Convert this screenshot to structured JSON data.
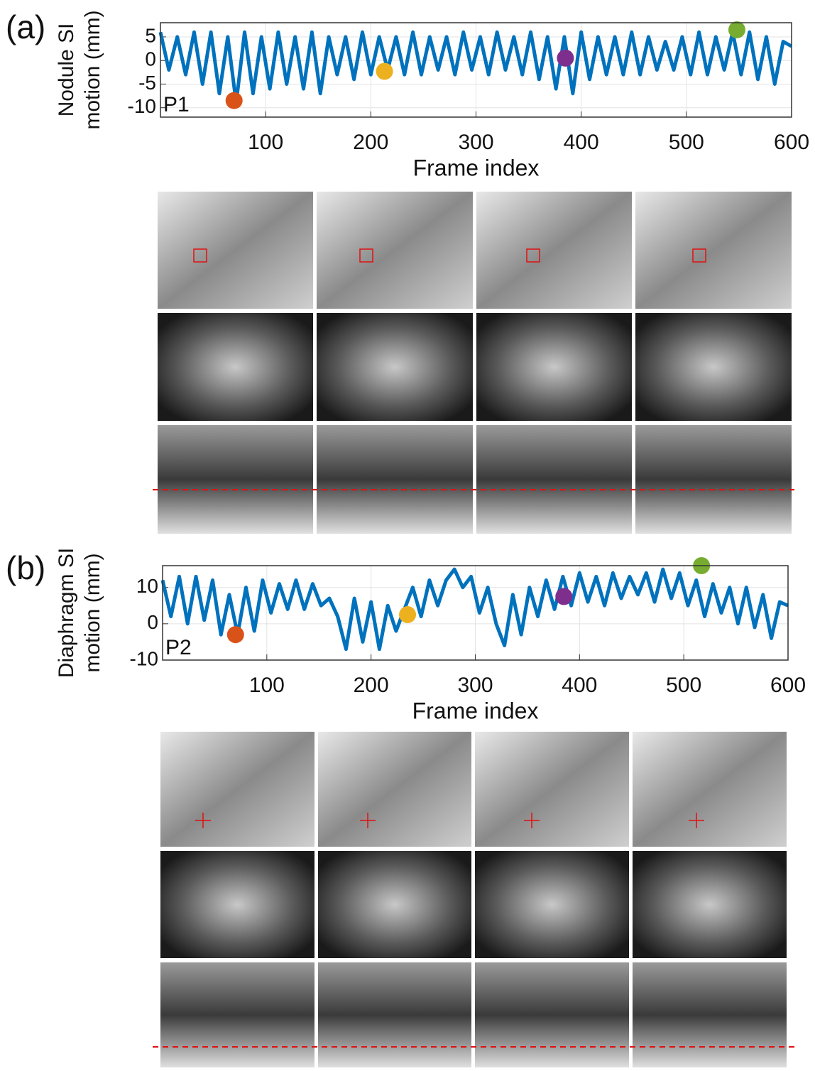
{
  "chart_data": [
    {
      "type": "line",
      "panel_label": "(a)",
      "subject": "P1",
      "ylabel": [
        "Nodule SI",
        "motion (mm)"
      ],
      "xlabel": "Frame index",
      "xlim": [
        0,
        600
      ],
      "xticks": [
        100,
        200,
        300,
        400,
        500,
        600
      ],
      "ylim": [
        -12,
        8
      ],
      "yticks": [
        -10,
        -5,
        0,
        5
      ],
      "grid": true,
      "x": [
        0,
        8,
        16,
        24,
        32,
        40,
        48,
        56,
        64,
        72,
        80,
        88,
        96,
        104,
        112,
        120,
        128,
        136,
        144,
        152,
        160,
        168,
        176,
        184,
        192,
        200,
        208,
        216,
        224,
        232,
        240,
        248,
        256,
        264,
        272,
        280,
        288,
        296,
        304,
        312,
        320,
        328,
        336,
        344,
        352,
        360,
        368,
        376,
        384,
        392,
        400,
        408,
        416,
        424,
        432,
        440,
        448,
        456,
        464,
        472,
        480,
        488,
        496,
        504,
        512,
        520,
        528,
        536,
        544,
        552,
        560,
        568,
        576,
        584,
        592,
        600
      ],
      "series": [
        {
          "color": "#0072bd",
          "values": [
            6,
            -2,
            5,
            -3,
            6,
            -5,
            6,
            -7,
            5,
            -9,
            6,
            -7,
            5,
            -6,
            6,
            -5,
            5,
            -6,
            6,
            -7,
            5,
            -3,
            5,
            -4,
            6,
            -3,
            5,
            -2,
            5,
            -3,
            6,
            -3,
            5,
            -2,
            5,
            -3,
            6,
            -2,
            5,
            -3,
            6,
            -2,
            5,
            -3,
            6,
            -4,
            5,
            -6,
            5,
            -7,
            6,
            -4,
            5,
            -3,
            5,
            -3,
            6,
            -3,
            5,
            -2,
            4,
            -2,
            5,
            -3,
            6,
            -3,
            5,
            -2,
            6,
            -3,
            6,
            -4,
            5,
            -5,
            4,
            3
          ]
        }
      ],
      "points": [
        {
          "x": 70,
          "y": -8.5,
          "color": "#d95319"
        },
        {
          "x": 213,
          "y": -2.3,
          "color": "#edb120"
        },
        {
          "x": 385,
          "y": 0.5,
          "color": "#7e2f8e"
        },
        {
          "x": 548,
          "y": 6.5,
          "color": "#77ac30"
        }
      ]
    },
    {
      "type": "line",
      "panel_label": "(b)",
      "subject": "P2",
      "ylabel": [
        "Diaphragm SI",
        "motion (mm)"
      ],
      "xlabel": "Frame index",
      "xlim": [
        0,
        600
      ],
      "xticks": [
        100,
        200,
        300,
        400,
        500,
        600
      ],
      "ylim": [
        -10,
        16
      ],
      "yticks": [
        -10,
        0,
        10
      ],
      "grid": true,
      "x": [
        0,
        8,
        16,
        24,
        32,
        40,
        48,
        56,
        64,
        72,
        80,
        88,
        96,
        104,
        112,
        120,
        128,
        136,
        144,
        152,
        160,
        168,
        176,
        184,
        192,
        200,
        208,
        216,
        224,
        232,
        240,
        248,
        256,
        264,
        272,
        280,
        288,
        296,
        304,
        312,
        320,
        328,
        336,
        344,
        352,
        360,
        368,
        376,
        384,
        392,
        400,
        408,
        416,
        424,
        432,
        440,
        448,
        456,
        464,
        472,
        480,
        488,
        496,
        504,
        512,
        520,
        528,
        536,
        544,
        552,
        560,
        568,
        576,
        584,
        592,
        600
      ],
      "series": [
        {
          "color": "#0072bd",
          "values": [
            12,
            2,
            13,
            0,
            13,
            1,
            12,
            -3,
            8,
            -3,
            10,
            -2,
            12,
            3,
            11,
            4,
            12,
            4,
            11,
            5,
            7,
            2,
            -7,
            7,
            -5,
            6,
            -7,
            5,
            -2,
            4,
            10,
            2,
            12,
            5,
            12,
            15,
            10,
            13,
            3,
            10,
            0,
            -6,
            8,
            -3,
            10,
            2,
            12,
            4,
            13,
            5,
            14,
            6,
            13,
            5,
            14,
            7,
            13,
            8,
            14,
            6,
            15,
            7,
            14,
            5,
            12,
            2,
            11,
            3,
            10,
            0,
            10,
            -1,
            8,
            -4,
            6,
            5
          ]
        }
      ],
      "points": [
        {
          "x": 70,
          "y": -3,
          "color": "#d95319"
        },
        {
          "x": 235,
          "y": 2.5,
          "color": "#edb120"
        },
        {
          "x": 385,
          "y": 7.5,
          "color": "#7e2f8e"
        },
        {
          "x": 517,
          "y": 16,
          "color": "#77ac30"
        }
      ]
    }
  ]
}
